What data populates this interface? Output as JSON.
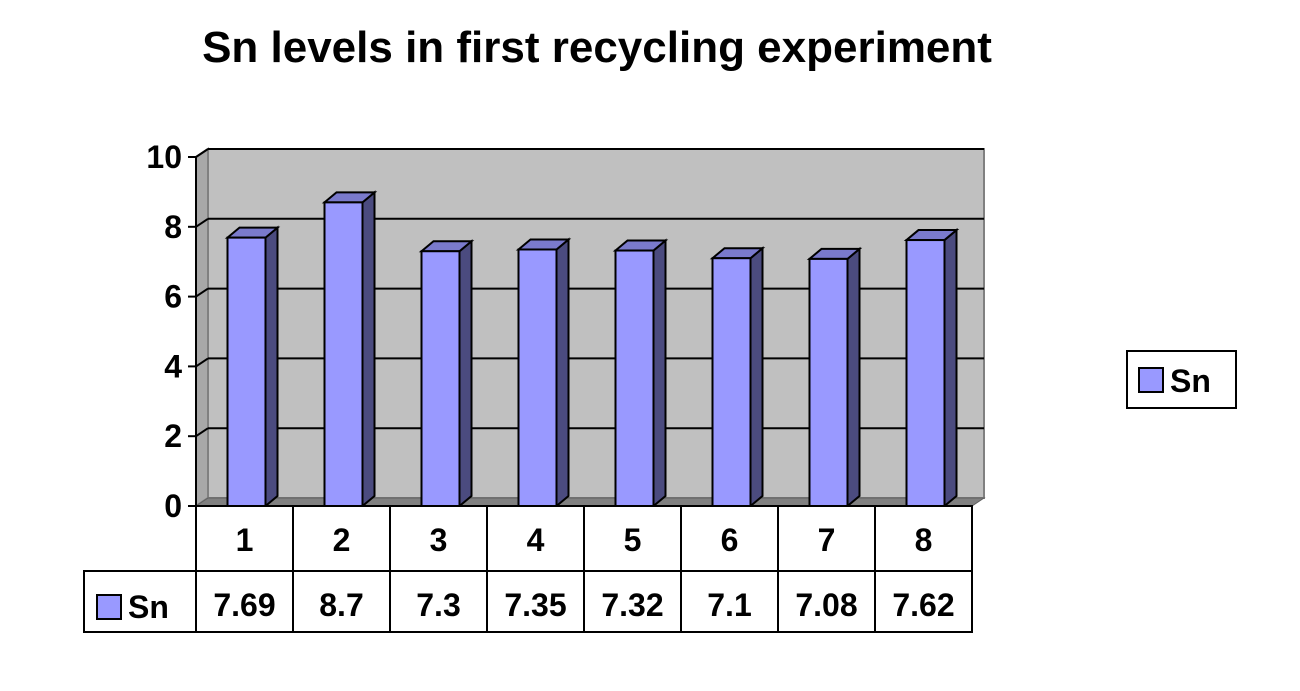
{
  "chart_data": {
    "type": "bar",
    "title": "Sn levels in first recycling experiment",
    "categories": [
      "1",
      "2",
      "3",
      "4",
      "5",
      "6",
      "7",
      "8"
    ],
    "series": [
      {
        "name": "Sn",
        "values": [
          7.69,
          8.7,
          7.3,
          7.35,
          7.32,
          7.1,
          7.08,
          7.62
        ]
      }
    ],
    "ylim": [
      0,
      10
    ],
    "yticks": [
      0,
      2,
      4,
      6,
      8,
      10
    ],
    "grid": true,
    "legend": "right",
    "data_table": true,
    "colors": {
      "bar_front": "#9999FF",
      "bar_side": "#4B4B7F",
      "bar_top": "#7A7ACC",
      "wall": "#C0C0C0",
      "floor": "#808080"
    }
  }
}
